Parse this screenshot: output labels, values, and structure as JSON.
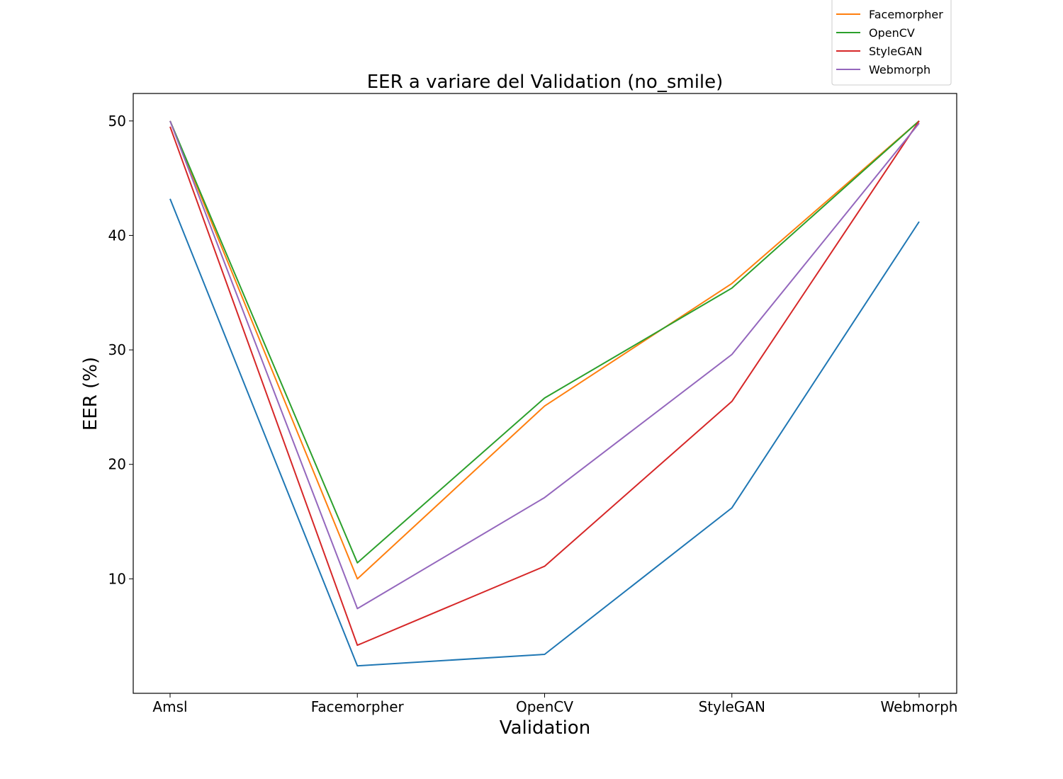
{
  "chart_data": {
    "type": "line",
    "title": "EER a variare del Validation (no_smile)",
    "xlabel": "Validation",
    "ylabel": "EER (%)",
    "categories": [
      "Amsl",
      "Facemorpher",
      "OpenCV",
      "StyleGAN",
      "Webmorph"
    ],
    "ylim": [
      0,
      52.4
    ],
    "yticks": [
      10,
      20,
      30,
      40,
      50
    ],
    "grid": false,
    "legend_position": "top-right",
    "series": [
      {
        "name": "",
        "color": "#1f77b4",
        "values": [
          43.2,
          2.4,
          3.4,
          16.2,
          41.2
        ]
      },
      {
        "name": "Facemorpher",
        "color": "#ff7f0e",
        "values": [
          50.0,
          10.0,
          25.1,
          35.8,
          50.0
        ]
      },
      {
        "name": "OpenCV",
        "color": "#2ca02c",
        "values": [
          50.0,
          11.4,
          25.8,
          35.4,
          50.0
        ]
      },
      {
        "name": "StyleGAN",
        "color": "#d62728",
        "values": [
          49.5,
          4.2,
          11.1,
          25.5,
          50.0
        ]
      },
      {
        "name": "Webmorph",
        "color": "#9467bd",
        "values": [
          50.0,
          7.4,
          17.1,
          29.6,
          49.8
        ]
      }
    ]
  }
}
